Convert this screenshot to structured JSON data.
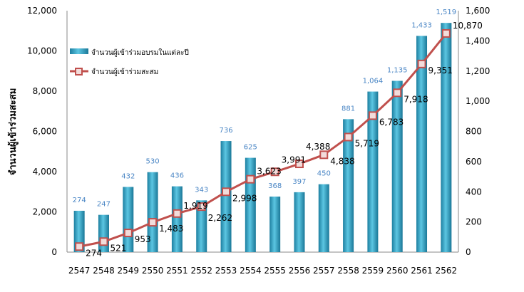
{
  "chart_data": {
    "type": "bar+line",
    "categories": [
      "2547",
      "2548",
      "2549",
      "2550",
      "2551",
      "2552",
      "2553",
      "2554",
      "2555",
      "2556",
      "2557",
      "2558",
      "2559",
      "2560",
      "2561",
      "2562"
    ],
    "series": [
      {
        "name": "จำนวนผู้เข้าร่วมอบรมในแต่ละปี",
        "type": "bar",
        "axis": "right",
        "color": "#2fa7c9",
        "values": [
          274,
          247,
          432,
          530,
          436,
          343,
          736,
          625,
          368,
          397,
          450,
          881,
          1064,
          1135,
          1433,
          1519
        ]
      },
      {
        "name": "จำนวนผู้เข้าร่วมสะสม",
        "type": "line",
        "axis": "left",
        "color": "#c0504d",
        "values": [
          274,
          521,
          953,
          1483,
          1919,
          2262,
          2998,
          3623,
          3991,
          4388,
          4838,
          5719,
          6783,
          7918,
          9351,
          10870
        ]
      }
    ],
    "ylabel": "จำนวนผู้เข้าร่วมสะสม",
    "ylim": [
      0,
      12000
    ],
    "y2lim": [
      0,
      1600
    ],
    "yticks": [
      "0",
      "2,000",
      "4,000",
      "6,000",
      "8,000",
      "10,000",
      "12,000"
    ],
    "y2ticks": [
      "0",
      "200",
      "400",
      "600",
      "800",
      "1,000",
      "1,200",
      "1,400",
      "1,600"
    ],
    "grid": false,
    "legend": "top-left"
  }
}
